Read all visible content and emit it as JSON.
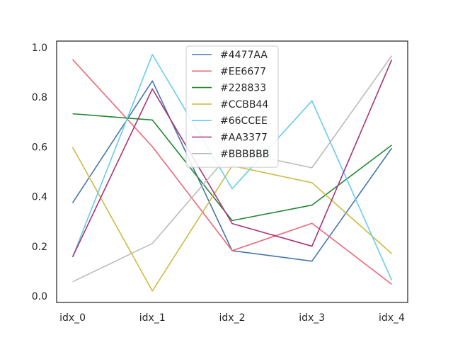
{
  "chart_data": {
    "type": "line",
    "categories": [
      "idx_0",
      "idx_1",
      "idx_2",
      "idx_3",
      "idx_4"
    ],
    "ylim": [
      -0.025,
      1.025
    ],
    "yticks": [
      "0.0",
      "0.2",
      "0.4",
      "0.6",
      "0.8",
      "1.0"
    ],
    "grid": false,
    "legend": "top-center",
    "series": [
      {
        "name": "#4477AA",
        "color": "#4477AA",
        "values": [
          0.375,
          0.865,
          0.183,
          0.141,
          0.595
        ]
      },
      {
        "name": "#EE6677",
        "color": "#EE6677",
        "values": [
          0.951,
          0.601,
          0.183,
          0.293,
          0.048
        ]
      },
      {
        "name": "#228833",
        "color": "#228833",
        "values": [
          0.733,
          0.708,
          0.304,
          0.366,
          0.607
        ]
      },
      {
        "name": "#CCBB44",
        "color": "#CCBB44",
        "values": [
          0.599,
          0.021,
          0.524,
          0.456,
          0.171
        ]
      },
      {
        "name": "#66CCEE",
        "color": "#66CCEE",
        "values": [
          0.157,
          0.971,
          0.432,
          0.785,
          0.064
        ]
      },
      {
        "name": "#AA3377",
        "color": "#AA3377",
        "values": [
          0.158,
          0.833,
          0.292,
          0.201,
          0.95
        ]
      },
      {
        "name": "#BBBBBB",
        "color": "#BBBBBB",
        "values": [
          0.058,
          0.212,
          0.584,
          0.516,
          0.966
        ]
      }
    ]
  }
}
